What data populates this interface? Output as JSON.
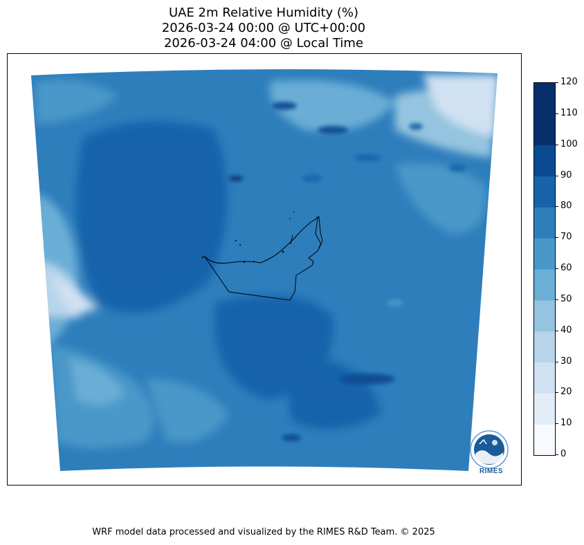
{
  "title": {
    "line1": "UAE 2m Relative Humidity (%)",
    "line2": "2026-03-24 00:00 @ UTC+00:00",
    "line3": "2026-03-24 04:00 @ Local Time"
  },
  "colorbar": {
    "variable": "2m Relative Humidity (%)",
    "levels": [
      0,
      10,
      20,
      30,
      40,
      50,
      60,
      70,
      80,
      90,
      100,
      110,
      120
    ],
    "labels": [
      "0",
      "10",
      "20",
      "30",
      "40",
      "50",
      "60",
      "70",
      "80",
      "90",
      "100",
      "110",
      "120"
    ],
    "colors": [
      "#f7fbff",
      "#e2edf8",
      "#d0e1f2",
      "#b7d4ea",
      "#94c4df",
      "#6baed6",
      "#4a98c9",
      "#2e7ebc",
      "#1764ab",
      "#0a4a90",
      "#08306b",
      "#08306b"
    ]
  },
  "map": {
    "region": "UAE",
    "features": [
      "humidity-field",
      "uae-border",
      "uae-coastline"
    ]
  },
  "logo": {
    "text": "RIMES"
  },
  "footer": "WRF model data processed and visualized by the RIMES R&D Team. © 2025"
}
